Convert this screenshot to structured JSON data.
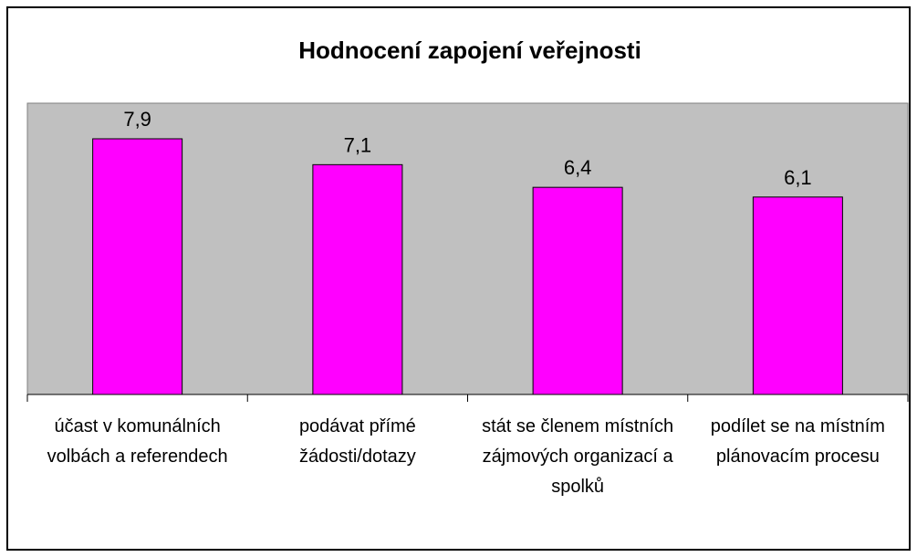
{
  "chart_data": {
    "type": "bar",
    "title": "Hodnocení zapojení veřejnosti",
    "categories": [
      "účast v komunálních volbách a referendech",
      "podávat přímé žádosti/dotazy",
      "stát se členem místních zájmových organizací a spolků",
      "podílet se na místním plánovacím procesu"
    ],
    "values": [
      7.9,
      7.1,
      6.4,
      6.1
    ],
    "value_labels": [
      "7,9",
      "7,1",
      "6,4",
      "6,1"
    ],
    "color": "#ff00ff",
    "ylim": [
      0,
      9
    ]
  }
}
